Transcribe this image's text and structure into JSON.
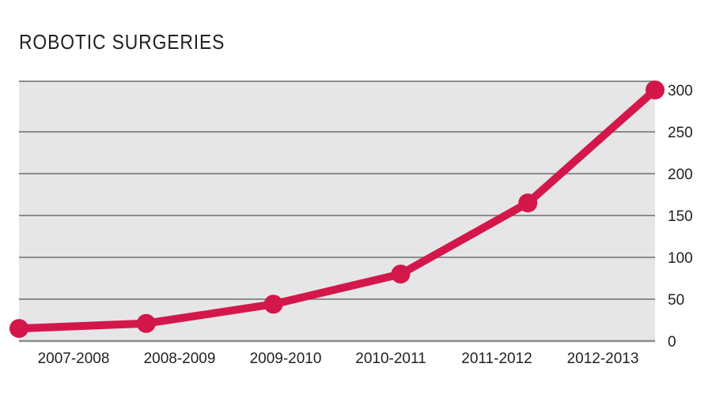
{
  "chart_data": {
    "type": "line",
    "title": "ROBOTIC SURGERIES",
    "xlabel": "",
    "ylabel": "",
    "categories": [
      "2007-2008",
      "2008-2009",
      "2009-2010",
      "2010-2011",
      "2011-2012",
      "2012-2013"
    ],
    "series": [
      {
        "values": [
          15,
          21,
          44,
          80,
          165,
          300
        ]
      }
    ],
    "ylim": [
      0,
      300
    ],
    "yticks": [
      0,
      50,
      100,
      150,
      200,
      250,
      300
    ],
    "y_axis_side": "right",
    "grid": true,
    "legend": "none",
    "colors": {
      "line": "#D4174A",
      "plot_background": "#E6E6E8",
      "gridline": "#8C8C8C",
      "text": "#222222"
    }
  }
}
